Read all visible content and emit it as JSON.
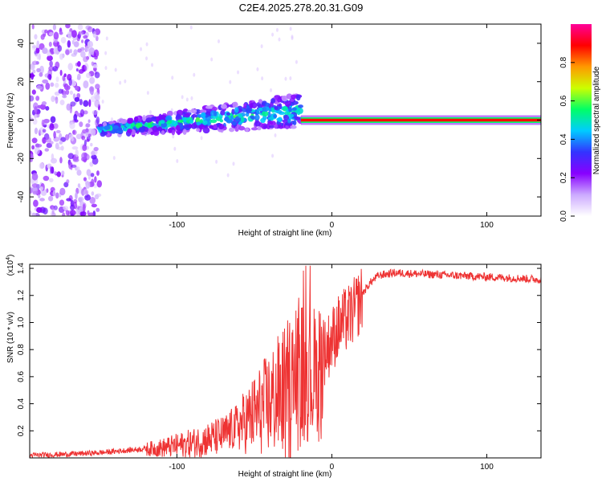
{
  "page_title": "C2E4.2025.278.20.31.G09",
  "chart_data": [
    {
      "type": "heatmap",
      "name": "spectrogram",
      "xlabel": "Height of straight line (km)",
      "ylabel": "Frequency (Hz)",
      "xlim": [
        -195,
        135
      ],
      "ylim": [
        -50,
        50
      ],
      "xticks": [
        -100,
        0,
        100
      ],
      "yticks": [
        -40,
        -20,
        0,
        20,
        40
      ],
      "xtick_labels": [
        "-100",
        "0",
        "100"
      ],
      "ytick_labels": [
        "-40",
        "-20",
        "0",
        "20",
        "40"
      ],
      "colorbar": {
        "label": "Normalized spectral amplitude",
        "range": [
          0,
          1
        ],
        "ticks": [
          0.0,
          0.2,
          0.4,
          0.6,
          0.8
        ],
        "tick_labels": [
          "0.0",
          "0.2",
          "0.4",
          "0.6",
          "0.8"
        ],
        "colors": [
          "#ffffff",
          "#ccaaff",
          "#8800ff",
          "#3333ff",
          "#00ccff",
          "#00ff66",
          "#ccff00",
          "#ff9900",
          "#ff0000",
          "#ff0099"
        ]
      },
      "features": [
        {
          "label": "diffuse noise region",
          "x_range": [
            -195,
            -150
          ],
          "freq_range": [
            -50,
            50
          ]
        },
        {
          "label": "ascending trail",
          "x_range": [
            -150,
            -20
          ],
          "freq_start": -5,
          "freq_end": 5
        },
        {
          "label": "strong carrier line",
          "x_range": [
            -20,
            135
          ],
          "freq": 0
        }
      ]
    },
    {
      "type": "line",
      "name": "snr",
      "xlabel": "Height of straight line (km)",
      "ylabel": "SNR (10 * v/v)",
      "yscale_label": "(x10",
      "yscale_exponent": "4",
      "xlim": [
        -195,
        135
      ],
      "ylim": [
        0,
        1.43
      ],
      "xticks": [
        -100,
        0,
        100
      ],
      "yticks": [
        0.2,
        0.4,
        0.6,
        0.8,
        1.0,
        1.2,
        1.4
      ],
      "xtick_labels": [
        "-100",
        "0",
        "100"
      ],
      "ytick_labels": [
        "0.2",
        "0.4",
        "0.6",
        "0.8",
        "1.0",
        "1.2",
        "1.4"
      ],
      "color": "#ee3333",
      "profile": [
        [
          -195,
          0.02
        ],
        [
          -170,
          0.03
        ],
        [
          -150,
          0.04
        ],
        [
          -130,
          0.06
        ],
        [
          -110,
          0.08
        ],
        [
          -90,
          0.12
        ],
        [
          -70,
          0.18
        ],
        [
          -55,
          0.3
        ],
        [
          -40,
          0.45
        ],
        [
          -30,
          0.55
        ],
        [
          -25,
          0.6
        ],
        [
          -20,
          0.68
        ],
        [
          -15,
          0.72
        ],
        [
          -10,
          0.62
        ],
        [
          -5,
          0.8
        ],
        [
          0,
          0.9
        ],
        [
          5,
          1.0
        ],
        [
          10,
          1.05
        ],
        [
          15,
          1.12
        ],
        [
          20,
          1.22
        ],
        [
          25,
          1.3
        ],
        [
          30,
          1.35
        ],
        [
          40,
          1.37
        ],
        [
          60,
          1.36
        ],
        [
          80,
          1.35
        ],
        [
          100,
          1.34
        ],
        [
          120,
          1.33
        ],
        [
          135,
          1.32
        ]
      ]
    }
  ]
}
